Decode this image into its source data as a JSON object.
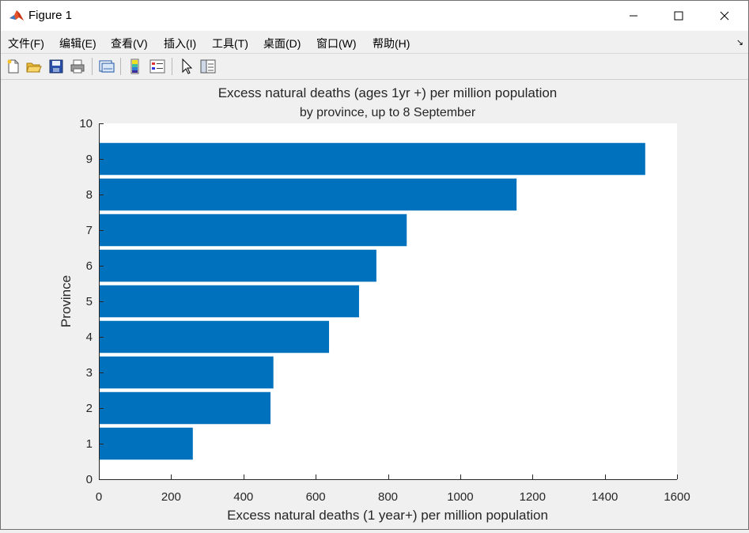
{
  "window": {
    "title": "Figure 1",
    "controls": {
      "minimize": "minimize",
      "maximize": "maximize",
      "close": "close"
    }
  },
  "menu": {
    "items": [
      "文件(F)",
      "编辑(E)",
      "查看(V)",
      "插入(I)",
      "工具(T)",
      "桌面(D)",
      "窗口(W)",
      "帮助(H)"
    ]
  },
  "toolbar": {
    "buttons": [
      "new-figure",
      "open-file",
      "save-figure",
      "print-figure",
      "link-plot",
      "insert-colorbar",
      "insert-legend",
      "edit-plot",
      "open-property-inspector"
    ]
  },
  "chart_data": {
    "type": "bar",
    "orientation": "horizontal",
    "title": "Excess natural deaths (ages 1yr +) per million population",
    "subtitle": "by province, up to 8 September",
    "xlabel": "Excess natural deaths (1 year+) per million population",
    "ylabel": "Province",
    "categories": [
      1,
      2,
      3,
      4,
      5,
      6,
      7,
      8,
      9
    ],
    "values": [
      260,
      475,
      483,
      637,
      720,
      768,
      852,
      1156,
      1512
    ],
    "xlim": [
      0,
      1600
    ],
    "ylim": [
      0,
      10
    ],
    "xticks": [
      "0",
      "200",
      "400",
      "600",
      "800",
      "1000",
      "1200",
      "1400",
      "1600"
    ],
    "yticks": [
      "0",
      "1",
      "2",
      "3",
      "4",
      "5",
      "6",
      "7",
      "8",
      "9",
      "10"
    ],
    "bar_color": "#0072BD",
    "grid": false
  }
}
